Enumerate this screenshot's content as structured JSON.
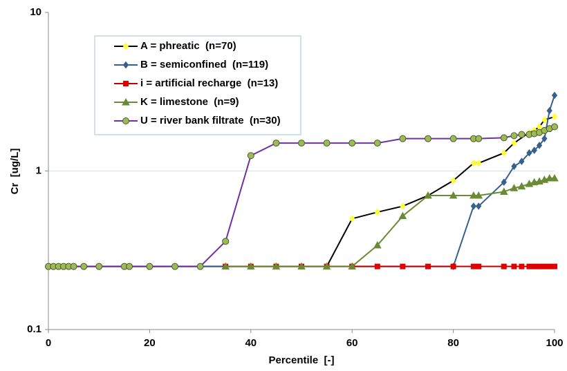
{
  "chart_data": {
    "type": "line",
    "y_scale": "log",
    "grid": true,
    "legend_position": "upper-left",
    "xlabel": "Percentile  [-]",
    "ylabel": "Cr  [ug/L]",
    "xlim": [
      0,
      100
    ],
    "xticks": [
      0,
      20,
      40,
      60,
      80,
      100
    ],
    "ylim": [
      0.1,
      10
    ],
    "yticks": [
      0.1,
      1,
      10
    ],
    "series": [
      {
        "name": "A = phreatic  (n=70)",
        "color": "#000000",
        "marker": "diamond",
        "marker_color": "#ffff33",
        "x": [
          0,
          10,
          20,
          30,
          40,
          50,
          55,
          60,
          65,
          70,
          75,
          80,
          84,
          85,
          90,
          92,
          95,
          96,
          97,
          98,
          100
        ],
        "values": [
          0.25,
          0.25,
          0.25,
          0.25,
          0.25,
          0.25,
          0.25,
          0.5,
          0.55,
          0.6,
          0.7,
          0.87,
          1.12,
          1.12,
          1.3,
          1.5,
          1.75,
          1.8,
          1.9,
          2.1,
          2.2
        ]
      },
      {
        "name": "B = semiconfined  (n=119)",
        "color": "#35608f",
        "marker": "diamond",
        "marker_color": "#35608f",
        "x": [
          0,
          80,
          84,
          85,
          90,
          92,
          93.5,
          95,
          96,
          97,
          98,
          99,
          100
        ],
        "values": [
          0.25,
          0.25,
          0.6,
          0.6,
          0.85,
          1.07,
          1.15,
          1.3,
          1.35,
          1.45,
          1.6,
          2.4,
          3.0
        ]
      },
      {
        "name": "i = artificial recharge  (n=13)",
        "color": "#c00000",
        "marker": "square",
        "marker_color": "#e00000",
        "x": [
          35,
          40,
          45,
          50,
          55,
          60,
          65,
          70,
          75,
          80,
          84,
          85,
          90,
          92,
          93.5,
          95,
          96,
          97,
          98,
          99,
          100
        ],
        "values": [
          0.25,
          0.25,
          0.25,
          0.25,
          0.25,
          0.25,
          0.25,
          0.25,
          0.25,
          0.25,
          0.25,
          0.25,
          0.25,
          0.25,
          0.25,
          0.25,
          0.25,
          0.25,
          0.25,
          0.25,
          0.25
        ]
      },
      {
        "name": "K = limestone  (n=9)",
        "color": "#6b8a35",
        "marker": "triangle",
        "marker_color": "#6b8a35",
        "x": [
          35,
          40,
          45,
          50,
          55,
          60,
          65,
          70,
          75,
          80,
          84,
          85,
          90,
          92,
          93.5,
          95,
          96,
          97,
          98,
          99,
          100
        ],
        "values": [
          0.25,
          0.25,
          0.25,
          0.25,
          0.25,
          0.25,
          0.34,
          0.52,
          0.7,
          0.7,
          0.7,
          0.7,
          0.74,
          0.78,
          0.8,
          0.83,
          0.85,
          0.86,
          0.88,
          0.9,
          0.9
        ]
      },
      {
        "name": "U = river bank filtrate  (n=30)",
        "color": "#7030a0",
        "marker": "circle",
        "marker_color": "#9bbb59",
        "x": [
          0,
          1,
          2,
          3,
          4,
          5,
          7,
          10,
          15,
          16,
          20,
          25,
          30,
          35,
          40,
          45,
          50,
          55,
          60,
          65,
          70,
          75,
          80,
          84,
          85,
          90,
          92,
          93.5,
          95,
          96,
          97,
          98,
          99,
          100
        ],
        "values": [
          0.25,
          0.25,
          0.25,
          0.25,
          0.25,
          0.25,
          0.25,
          0.25,
          0.25,
          0.25,
          0.25,
          0.25,
          0.25,
          0.36,
          1.25,
          1.5,
          1.5,
          1.5,
          1.5,
          1.5,
          1.6,
          1.6,
          1.6,
          1.6,
          1.6,
          1.62,
          1.67,
          1.7,
          1.7,
          1.72,
          1.75,
          1.8,
          1.85,
          1.9
        ]
      }
    ]
  }
}
